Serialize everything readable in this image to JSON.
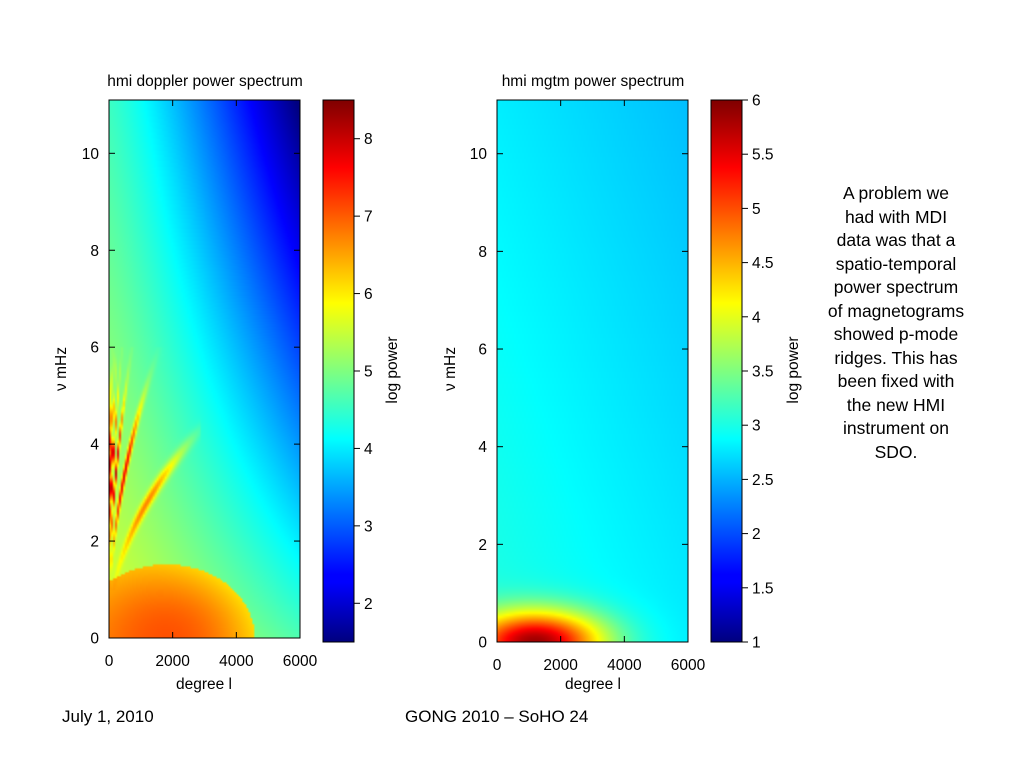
{
  "chart_data": [
    {
      "type": "heatmap",
      "title": "hmi doppler power spectrum",
      "xlabel": "degree l",
      "ylabel": "ν mHz",
      "xlim": [
        0,
        6000
      ],
      "ylim": [
        0,
        11.1
      ],
      "x_ticks": [
        "0",
        "2000",
        "4000",
        "6000"
      ],
      "y_ticks": [
        "0",
        "2",
        "4",
        "6",
        "8",
        "10"
      ],
      "colorbar": {
        "label": "log power",
        "range": [
          1.5,
          8.5
        ],
        "ticks": [
          "2",
          "3",
          "4",
          "5",
          "6",
          "7",
          "8"
        ],
        "colormap": "jet"
      },
      "features": {
        "background_log_power": [
          4.5,
          5.8
        ],
        "high_freq_high_l_log_power": 2.5,
        "p_mode_ridges": {
          "nu_range_mHz": [
            1.5,
            5.5
          ],
          "l_range": [
            0,
            2300
          ],
          "peak_log_power": 8.3,
          "count": 10
        },
        "low_freq_bump": {
          "center_l": 1800,
          "radius_l": 2200,
          "nu_max_mHz": 1.2,
          "peak_log_power": 7.2
        }
      }
    },
    {
      "type": "heatmap",
      "title": "hmi mgtm power spectrum",
      "xlabel": "degree l",
      "ylabel": "ν mHz",
      "xlim": [
        0,
        6000
      ],
      "ylim": [
        0,
        11.1
      ],
      "x_ticks": [
        "0",
        "2000",
        "4000",
        "6000"
      ],
      "y_ticks": [
        "0",
        "2",
        "4",
        "6",
        "8",
        "10"
      ],
      "colorbar": {
        "label": "log power",
        "range": [
          1,
          6
        ],
        "ticks": [
          "1",
          "1.5",
          "2",
          "2.5",
          "3",
          "3.5",
          "4",
          "4.5",
          "5",
          "5.5",
          "6"
        ],
        "colormap": "jet"
      },
      "features": {
        "background_log_power": [
          2.5,
          3.0
        ],
        "low_freq_bump": {
          "center_l": 1200,
          "radius_l": 2000,
          "nu_max_mHz": 0.6,
          "peak_log_power": 6.0
        }
      }
    }
  ],
  "note": "A problem we had with MDI data was that a spatio-temporal power spectrum of magnetograms showed p-mode ridges. This has been fixed with the new HMI instrument on SDO.",
  "footer": {
    "date": "July 1, 2010",
    "event": "GONG 2010 – SoHO 24"
  }
}
